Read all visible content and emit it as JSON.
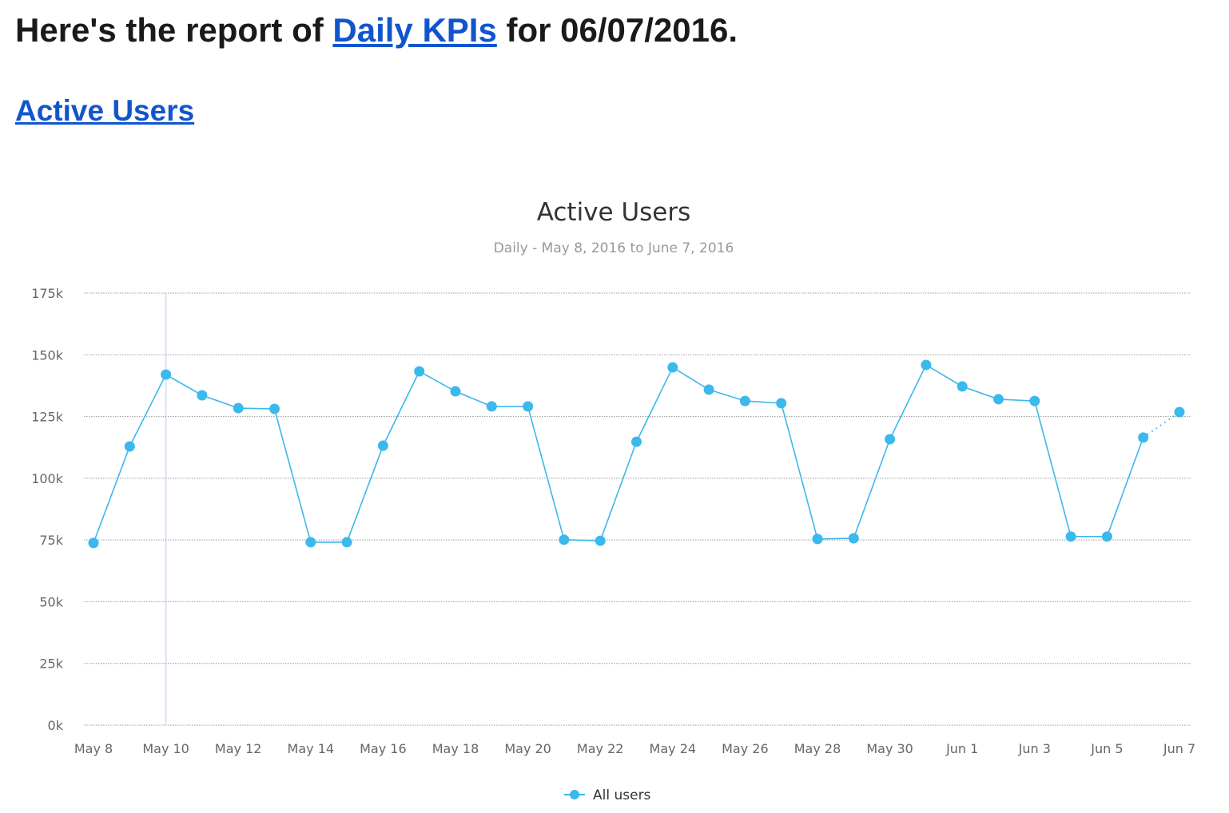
{
  "header": {
    "prefix": "Here's the report of ",
    "link": "Daily KPIs",
    "suffix": " for 06/07/2016."
  },
  "section": {
    "link": "Active Users"
  },
  "chart_data": {
    "type": "line",
    "title": "Active Users",
    "subtitle": "Daily - May 8, 2016 to June 7, 2016",
    "xlabel": "",
    "ylabel": "",
    "ylim": [
      0,
      175000
    ],
    "yticks": [
      "0k",
      "25k",
      "50k",
      "75k",
      "100k",
      "125k",
      "150k",
      "175k"
    ],
    "xticks": [
      "May 8",
      "May 10",
      "May 12",
      "May 14",
      "May 16",
      "May 18",
      "May 20",
      "May 22",
      "May 24",
      "May 26",
      "May 28",
      "May 30",
      "Jun 1",
      "Jun 3",
      "Jun 5",
      "Jun 7"
    ],
    "grid": true,
    "legend": "bottom-center",
    "color": "#3bb8ec",
    "x": [
      "May 8",
      "May 9",
      "May 10",
      "May 11",
      "May 12",
      "May 13",
      "May 14",
      "May 15",
      "May 16",
      "May 17",
      "May 18",
      "May 19",
      "May 20",
      "May 21",
      "May 22",
      "May 23",
      "May 24",
      "May 25",
      "May 26",
      "May 27",
      "May 28",
      "May 29",
      "May 30",
      "May 31",
      "Jun 1",
      "Jun 2",
      "Jun 3",
      "Jun 4",
      "Jun 5",
      "Jun 6",
      "Jun 7"
    ],
    "series": [
      {
        "name": "All users",
        "values": [
          73800,
          112900,
          142000,
          133600,
          128400,
          128100,
          74100,
          74100,
          113200,
          143300,
          135200,
          129100,
          129100,
          75100,
          74700,
          114800,
          144900,
          135900,
          131300,
          130400,
          75400,
          75700,
          115800,
          145900,
          137200,
          132000,
          131300,
          76400,
          76400,
          116500,
          126800
        ],
        "partial_last": true
      }
    ],
    "highlight_x": "May 10"
  }
}
